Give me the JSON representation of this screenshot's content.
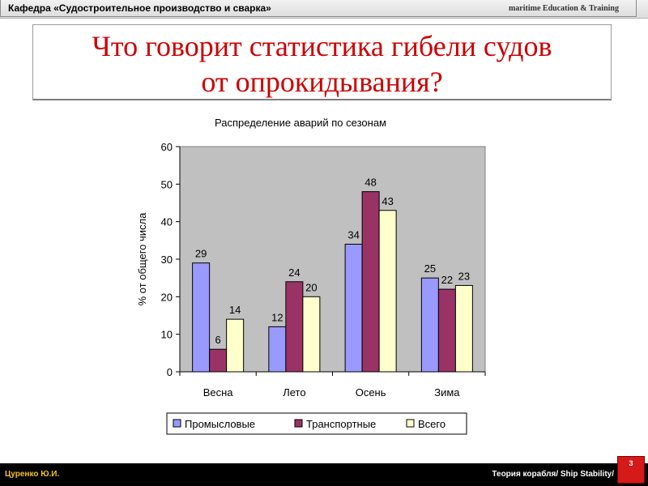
{
  "header": {
    "department": "Кафедра «Судостроительное производство и сварка»",
    "tagline": "maritime Education & Training"
  },
  "slide": {
    "title_line1": "Что говорит статистика гибели судов",
    "title_line2": "от опрокидывания?"
  },
  "chart_data": {
    "type": "bar",
    "title": "Распределение аварий по сезонам",
    "xlabel": "",
    "ylabel": "% от общего числа",
    "ylim": [
      0,
      60
    ],
    "yticks": [
      0,
      10,
      20,
      30,
      40,
      50,
      60
    ],
    "categories": [
      "Весна",
      "Лето",
      "Осень",
      "Зима"
    ],
    "series": [
      {
        "name": "Промысловые",
        "color": "#9999ff",
        "values": [
          29,
          12,
          34,
          25
        ]
      },
      {
        "name": "Транспортные",
        "color": "#993366",
        "values": [
          6,
          24,
          48,
          22
        ]
      },
      {
        "name": "Всего",
        "color": "#ffffcc",
        "values": [
          14,
          20,
          43,
          23
        ]
      }
    ],
    "plot_background": "#c0c0c0",
    "grid": false,
    "legend_position": "bottom"
  },
  "footer": {
    "author": "Цуренко Ю.И.",
    "course": "Теория корабля/ Ship Stability/",
    "page": "3"
  }
}
